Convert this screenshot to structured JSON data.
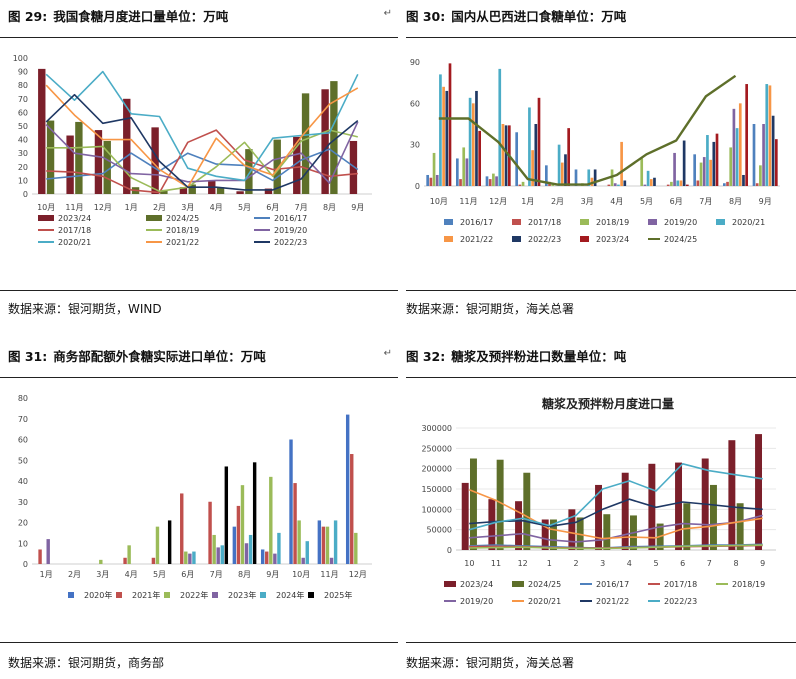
{
  "panels": [
    {
      "figure": "图 29:",
      "title": "我国食糖月度进口量单位：万吨",
      "source": "数据来源：银河期货，WIND",
      "chart_data": {
        "type": "bar+line",
        "categories": [
          "10月",
          "11月",
          "12月",
          "1月",
          "2月",
          "3月",
          "4月",
          "5月",
          "6月",
          "7月",
          "8月",
          "9月"
        ],
        "ylim": [
          0,
          100
        ],
        "yticks": [
          0,
          10,
          20,
          30,
          40,
          50,
          60,
          70,
          80,
          90,
          100
        ],
        "legend_position": "bottom",
        "bars": [
          {
            "name": "2023/24",
            "color": "#7b1f2a",
            "values": [
              92,
              43,
              47,
              70,
              49,
              5,
              10,
              2,
              4,
              42,
              77,
              39
            ]
          },
          {
            "name": "2024/25",
            "color": "#5e6f2a",
            "values": [
              54,
              53,
              39,
              5,
              3,
              7,
              5,
              33,
              40,
              74,
              83,
              null
            ]
          }
        ],
        "lines": [
          {
            "name": "2016/17",
            "color": "#4f81bd",
            "values": [
              11,
              13,
              15,
              30,
              17,
              30,
              22,
              21,
              10,
              25,
              33,
              18
            ]
          },
          {
            "name": "2017/18",
            "color": "#c0504d",
            "values": [
              17,
              16,
              13,
              3,
              1,
              38,
              47,
              25,
              18,
              20,
              13,
              15
            ]
          },
          {
            "name": "2018/19",
            "color": "#9bbb59",
            "values": [
              34,
              34,
              35,
              12,
              2,
              5,
              20,
              38,
              13,
              39,
              47,
              42
            ]
          },
          {
            "name": "2019/20",
            "color": "#8064a2",
            "values": [
              51,
              30,
              27,
              15,
              14,
              9,
              10,
              10,
              25,
              30,
              8,
              53
            ]
          },
          {
            "name": "2020/21",
            "color": "#4bacc6",
            "values": [
              88,
              69,
              90,
              59,
              57,
              19,
              13,
              10,
              41,
              43,
              45,
              88
            ]
          },
          {
            "name": "2021/22",
            "color": "#f79646",
            "values": [
              80,
              58,
              40,
              40,
              18,
              5,
              41,
              21,
              14,
              42,
              66,
              78
            ]
          },
          {
            "name": "2022/23",
            "color": "#1f3864",
            "values": [
              53,
              73,
              52,
              56,
              24,
              5,
              5,
              3,
              3,
              11,
              37,
              54
            ]
          }
        ]
      }
    },
    {
      "figure": "图 30:",
      "title": "国内从巴西进口食糖单位：万吨",
      "source": "数据来源：银河期货，海关总署",
      "chart_data": {
        "type": "bar+line",
        "categories": [
          "10月",
          "11月",
          "12月",
          "1月",
          "2月",
          "3月",
          "4月",
          "5月",
          "6月",
          "7月",
          "8月",
          "9月"
        ],
        "ylim": [
          0,
          90
        ],
        "yticks": [
          0,
          30,
          60,
          90
        ],
        "legend_position": "bottom",
        "bars": [
          {
            "name": "2016/17",
            "color": "#4f81bd",
            "values": [
              8,
              20,
              7,
              39,
              15,
              12,
              0,
              0,
              0,
              23,
              2,
              45
            ]
          },
          {
            "name": "2017/18",
            "color": "#c0504d",
            "values": [
              6,
              5,
              5,
              1,
              3,
              0,
              1,
              0,
              1,
              4,
              3,
              2
            ]
          },
          {
            "name": "2018/19",
            "color": "#9bbb59",
            "values": [
              24,
              28,
              9,
              3,
              1,
              2,
              12,
              20,
              3,
              17,
              28,
              15
            ]
          },
          {
            "name": "2019/20",
            "color": "#8064a2",
            "values": [
              8,
              20,
              7,
              0,
              0,
              0,
              2,
              1,
              24,
              21,
              56,
              45
            ]
          },
          {
            "name": "2020/21",
            "color": "#4bacc6",
            "values": [
              81,
              64,
              85,
              57,
              30,
              12,
              1,
              11,
              4,
              37,
              42,
              74
            ]
          },
          {
            "name": "2021/22",
            "color": "#f79646",
            "values": [
              72,
              60,
              45,
              26,
              17,
              6,
              32,
              5,
              4,
              19,
              60,
              73
            ]
          },
          {
            "name": "2022/23",
            "color": "#1f3864",
            "values": [
              69,
              69,
              44,
              45,
              23,
              12,
              4,
              6,
              33,
              32,
              8,
              51
            ]
          },
          {
            "name": "2023/24",
            "color": "#a31a1f",
            "values": [
              89,
              40,
              44,
              64,
              42,
              0,
              0,
              0,
              1,
              38,
              74,
              34
            ]
          }
        ],
        "lines": [
          {
            "name": "2024/25",
            "color": "#5e6f2a",
            "values": [
              49,
              49,
              32,
              5,
              1,
              1,
              8,
              23,
              33,
              65,
              80,
              null
            ]
          }
        ]
      }
    },
    {
      "figure": "图 31:",
      "title": "商务部配额外食糖实际进口单位：万吨",
      "source": "数据来源：银河期货，商务部",
      "chart_data": {
        "type": "bar",
        "categories": [
          "1月",
          "2月",
          "3月",
          "4月",
          "5月",
          "6月",
          "7月",
          "8月",
          "9月",
          "10月",
          "11月",
          "12月"
        ],
        "ylim": [
          0,
          80
        ],
        "yticks": [
          0,
          10,
          20,
          30,
          40,
          50,
          60,
          70,
          80
        ],
        "legend_position": "bottom",
        "bars": [
          {
            "name": "2020年",
            "color": "#4472c4",
            "values": [
              0,
              0,
              0,
              0,
              0,
              0,
              0,
              18,
              7,
              60,
              21,
              72
            ]
          },
          {
            "name": "2021年",
            "color": "#c0504d",
            "values": [
              7,
              0,
              0,
              3,
              3,
              34,
              30,
              28,
              6,
              39,
              18,
              53
            ]
          },
          {
            "name": "2022年",
            "color": "#9bbb59",
            "values": [
              0,
              0,
              2,
              9,
              18,
              6,
              14,
              38,
              42,
              21,
              18,
              15
            ]
          },
          {
            "name": "2023年",
            "color": "#8064a2",
            "values": [
              12,
              0,
              0,
              0,
              0,
              5,
              8,
              10,
              5,
              3,
              3,
              0
            ]
          },
          {
            "name": "2024年",
            "color": "#4bacc6",
            "values": [
              0,
              0,
              0,
              0,
              0,
              6,
              9,
              14,
              15,
              11,
              21,
              0
            ]
          },
          {
            "name": "2025年",
            "color": "#000000",
            "values": [
              0,
              0,
              0,
              0,
              21,
              0,
              47,
              49,
              0,
              0,
              0,
              0
            ]
          }
        ]
      }
    },
    {
      "figure": "图 32:",
      "title": "糖浆及预拌粉进口数量单位：吨",
      "source": "数据来源：银河期货，海关总署",
      "chart_data": {
        "type": "bar+line",
        "title": "糖浆及预拌粉月度进口量",
        "categories": [
          "10",
          "11",
          "12",
          "1",
          "2",
          "3",
          "4",
          "5",
          "6",
          "7",
          "8",
          "9"
        ],
        "ylim": [
          0,
          300000
        ],
        "yticks": [
          0,
          50000,
          100000,
          150000,
          200000,
          250000,
          300000
        ],
        "legend_position": "bottom",
        "bars": [
          {
            "name": "2023/24",
            "color": "#7b1f2a",
            "values": [
              165000,
              125000,
              120000,
              75000,
              100000,
              160000,
              190000,
              212000,
              215000,
              225000,
              270000,
              285000
            ]
          },
          {
            "name": "2024/25",
            "color": "#5e6f2a",
            "values": [
              225000,
              222000,
              190000,
              75000,
              80000,
              88000,
              85000,
              65000,
              115000,
              160000,
              115000,
              null
            ]
          }
        ],
        "lines": [
          {
            "name": "2016/17",
            "color": "#4f81bd",
            "values": [
              10000,
              12000,
              10000,
              8000,
              6000,
              5000,
              8000,
              9000,
              10000,
              12000,
              12000,
              14000
            ]
          },
          {
            "name": "2017/18",
            "color": "#c0504d",
            "values": [
              8000,
              9000,
              8000,
              6000,
              5000,
              5000,
              6000,
              7000,
              8000,
              9000,
              10000,
              11000
            ]
          },
          {
            "name": "2018/19",
            "color": "#9bbb59",
            "values": [
              5000,
              6000,
              7000,
              5000,
              4000,
              4000,
              5000,
              7000,
              9000,
              10000,
              11000,
              12000
            ]
          },
          {
            "name": "2019/20",
            "color": "#8064a2",
            "values": [
              30000,
              35000,
              40000,
              25000,
              20000,
              25000,
              40000,
              55000,
              65000,
              62000,
              68000,
              85000
            ]
          },
          {
            "name": "2020/21",
            "color": "#f79646",
            "values": [
              148000,
              122000,
              88000,
              52000,
              40000,
              28000,
              32000,
              30000,
              52000,
              58000,
              68000,
              78000
            ]
          },
          {
            "name": "2021/22",
            "color": "#1f3864",
            "values": [
              65000,
              70000,
              72000,
              58000,
              68000,
              100000,
              125000,
              105000,
              118000,
              112000,
              105000,
              100000
            ]
          },
          {
            "name": "2022/23",
            "color": "#4bacc6",
            "values": [
              50000,
              68000,
              78000,
              60000,
              85000,
              150000,
              170000,
              145000,
              212000,
              195000,
              185000,
              175000
            ]
          }
        ]
      }
    }
  ]
}
